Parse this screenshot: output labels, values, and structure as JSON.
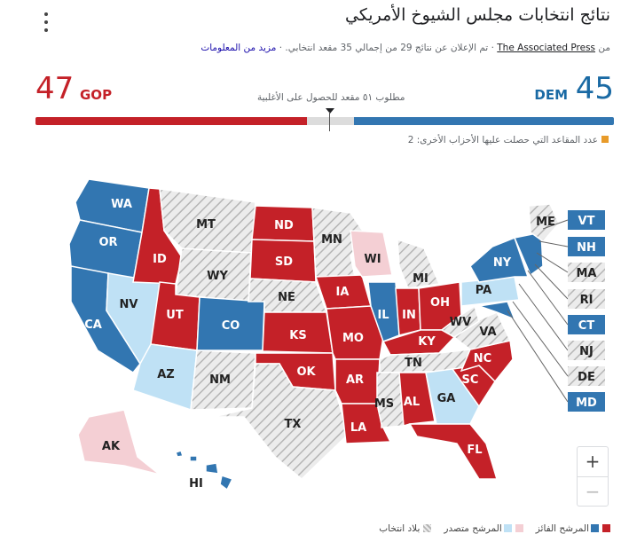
{
  "header": {
    "title": "نتائج انتخابات مجلس الشيوخ الأمريكي",
    "source_prefix": "من",
    "source_name": "The Associated Press",
    "source_detail": "· تم الإعلان عن نتائج 29 من إجمالي 35 مقعد انتخابي. ·",
    "more_link": "مزيد من المعلومات"
  },
  "tally": {
    "dem_label": "DEM",
    "dem_seats": "45",
    "gop_label": "GOP",
    "gop_seats": "47",
    "majority_text": "مطلوب ٥١ مقعد للحصول على الأغلبية",
    "others_text": "عدد المقاعد التي حصلت عليها الأحزاب الأخرى: 2",
    "dem_value": 45,
    "gop_value": 47,
    "other_value": 2,
    "total": 100,
    "majority_value": 51
  },
  "colors": {
    "dem_winner": "#3276b1",
    "dem_leading": "#bfe1f5",
    "gop_winner": "#c42128",
    "gop_leading": "#f4cfd4",
    "no_election": "#ececec",
    "hatch": "#b5b5b5",
    "other": "#e89b2a"
  },
  "legend": {
    "winner": "المرشح الفائز",
    "leading": "المرشح متصدر",
    "no_race": "بلاد انتخاب"
  },
  "zoom": {
    "in": "+",
    "out": "−"
  },
  "states": {
    "WA": "WA",
    "OR": "OR",
    "CA": "CA",
    "NV": "NV",
    "ID": "ID",
    "MT": "MT",
    "WY": "WY",
    "UT": "UT",
    "CO": "CO",
    "AZ": "AZ",
    "NM": "NM",
    "ND": "ND",
    "SD": "SD",
    "NE": "NE",
    "KS": "KS",
    "OK": "OK",
    "TX": "TX",
    "MN": "MN",
    "IA": "IA",
    "MO": "MO",
    "AR": "AR",
    "LA": "LA",
    "WI": "WI",
    "IL": "IL",
    "MI": "MI",
    "IN": "IN",
    "OH": "OH",
    "KY": "KY",
    "TN": "TN",
    "MS": "MS",
    "AL": "AL",
    "GA": "GA",
    "FL": "FL",
    "SC": "SC",
    "NC": "NC",
    "VA": "VA",
    "WV": "WV",
    "PA": "PA",
    "NY": "NY",
    "ME": "ME",
    "AK": "AK",
    "HI": "HI",
    "VT": "VT",
    "NH": "NH",
    "MA": "MA",
    "RI": "RI",
    "CT": "CT",
    "NJ": "NJ",
    "DE": "DE",
    "MD": "MD"
  }
}
